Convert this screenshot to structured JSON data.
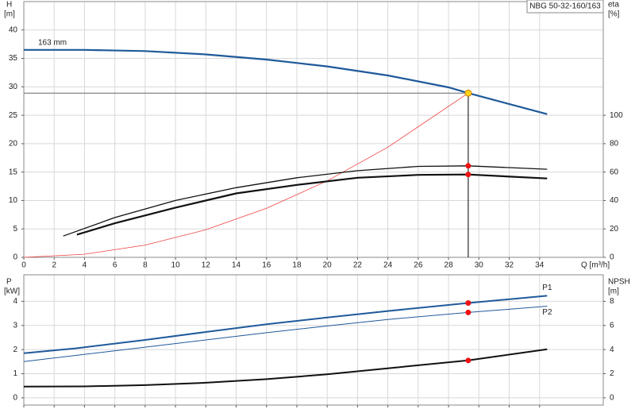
{
  "chart_data": [
    {
      "type": "line",
      "y_label": "H",
      "y_unit": "[m]",
      "y2_label": "eta",
      "y2_unit": "[%]",
      "x_label": "Q [m³/h]",
      "model": "NBG 50-32-160/163",
      "xlim": [
        0,
        38.2
      ],
      "xticks": [
        0,
        2,
        4,
        6,
        8,
        10,
        12,
        14,
        16,
        18,
        20,
        22,
        24,
        26,
        28,
        30,
        32,
        34
      ],
      "ylim": [
        0,
        45
      ],
      "yticks": [
        0,
        5,
        10,
        15,
        20,
        25,
        30,
        35,
        40
      ],
      "y2lim": [
        0,
        180
      ],
      "y2ticks": [
        0,
        20,
        40,
        60,
        80,
        100
      ],
      "grid": true,
      "show_xtick_labels": true,
      "duty_point": {
        "x": 29.3,
        "y": 28.9
      },
      "series": [
        {
          "name": "163 mm",
          "color": "#1f5a9a",
          "width": 2.2,
          "x": [
            0,
            4,
            8,
            12,
            16,
            20,
            24,
            28,
            29.3,
            34.5
          ],
          "values": [
            36.5,
            36.5,
            36.3,
            35.7,
            34.8,
            33.6,
            32.0,
            29.9,
            28.9,
            25.2
          ]
        },
        {
          "color": "#f04040",
          "width": 0.8,
          "x": [
            0,
            4,
            8,
            12,
            16,
            20,
            24,
            29.3
          ],
          "values": [
            0,
            0.54,
            2.15,
            4.85,
            8.62,
            13.46,
            19.39,
            28.9
          ]
        },
        {
          "color": "#111111",
          "width": 1.3,
          "axis": "y2",
          "x": [
            2.6,
            6,
            10,
            14,
            18,
            22,
            26,
            29.3,
            34.5
          ],
          "values": [
            15,
            28,
            40,
            49,
            56,
            61,
            64,
            64.4,
            62
          ]
        },
        {
          "color": "#111111",
          "width": 2.2,
          "axis": "y2",
          "x": [
            3.5,
            6,
            10,
            14,
            18,
            22,
            26,
            29.3,
            34.5
          ],
          "values": [
            16,
            24,
            35,
            45,
            51,
            56,
            58,
            58.3,
            55.5
          ]
        }
      ]
    },
    {
      "type": "line",
      "y_label": "P",
      "y_unit": "[kW]",
      "y2_label": "NPSH",
      "y2_unit": "[m]",
      "xlim": [
        0,
        38.2
      ],
      "xticks": [
        0,
        2,
        4,
        6,
        8,
        10,
        12,
        14,
        16,
        18,
        20,
        22,
        24,
        26,
        28,
        30,
        32,
        34
      ],
      "ylim": [
        -0.3,
        5.1
      ],
      "yticks": [
        0,
        1,
        2,
        3,
        4
      ],
      "y2lim": [
        -0.6,
        10.2
      ],
      "y2ticks": [
        0,
        2,
        4,
        6,
        8
      ],
      "grid": true,
      "show_xtick_labels": false,
      "duty_point": {
        "x": 29.3
      },
      "series": [
        {
          "name": "P1",
          "color": "#1f5a9a",
          "width": 2,
          "x": [
            0,
            3.4,
            8,
            12,
            16,
            20,
            24,
            29.3,
            34.5
          ],
          "values": [
            1.85,
            2.05,
            2.4,
            2.73,
            3.05,
            3.33,
            3.6,
            3.93,
            4.23
          ]
        },
        {
          "name": "P2",
          "color": "#1f5a9a",
          "width": 1,
          "x": [
            0,
            8,
            12,
            16,
            20,
            24,
            29.3,
            34.5
          ],
          "values": [
            1.5,
            2.1,
            2.4,
            2.7,
            2.98,
            3.25,
            3.54,
            3.8
          ]
        },
        {
          "color": "#111111",
          "width": 2,
          "axis": "y2",
          "x": [
            0,
            4,
            8,
            12,
            16,
            20,
            24,
            29.3,
            34.5
          ],
          "values": [
            0.93,
            0.95,
            1.05,
            1.25,
            1.55,
            1.95,
            2.45,
            3.1,
            4.03
          ]
        }
      ]
    }
  ]
}
